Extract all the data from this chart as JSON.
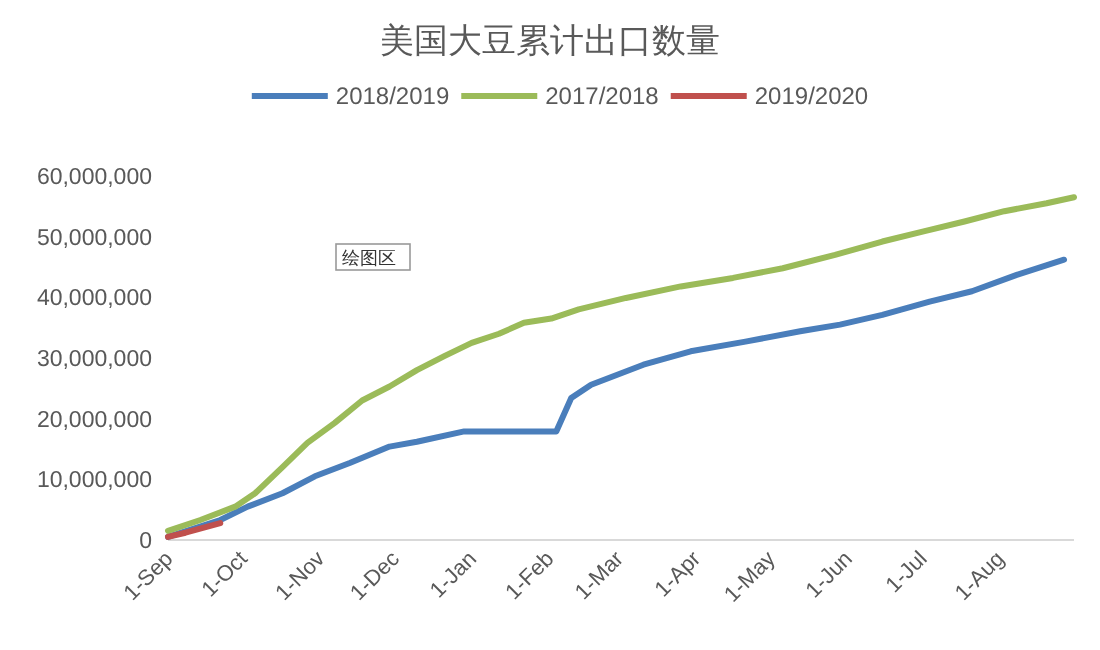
{
  "chart_data": {
    "type": "line",
    "title": "美国大豆累计出口数量",
    "legend": "top",
    "grid": false,
    "xlim": [
      "2018-09-01",
      "2019-08-31"
    ],
    "xticks": [
      {
        "value": "2018-09-01",
        "label": "1-Sep"
      },
      {
        "value": "2018-10-01",
        "label": "1-Oct"
      },
      {
        "value": "2018-11-01",
        "label": "1-Nov"
      },
      {
        "value": "2018-12-01",
        "label": "1-Dec"
      },
      {
        "value": "2019-01-01",
        "label": "1-Jan"
      },
      {
        "value": "2019-02-01",
        "label": "1-Feb"
      },
      {
        "value": "2019-03-01",
        "label": "1-Mar"
      },
      {
        "value": "2019-04-01",
        "label": "1-Apr"
      },
      {
        "value": "2019-05-01",
        "label": "1-May"
      },
      {
        "value": "2019-06-01",
        "label": "1-Jun"
      },
      {
        "value": "2019-07-01",
        "label": "1-Jul"
      },
      {
        "value": "2019-08-01",
        "label": "1-Aug"
      }
    ],
    "ylim": [
      0,
      60000000
    ],
    "yticks": [
      {
        "value": 0,
        "label": "0"
      },
      {
        "value": 10000000,
        "label": "10,000,000"
      },
      {
        "value": 20000000,
        "label": "20,000,000"
      },
      {
        "value": 30000000,
        "label": "30,000,000"
      },
      {
        "value": 40000000,
        "label": "40,000,000"
      },
      {
        "value": 50000000,
        "label": "50,000,000"
      },
      {
        "value": 60000000,
        "label": "60,000,000"
      }
    ],
    "annotations": [
      "绘图区"
    ],
    "series": [
      {
        "name": "2018/2019",
        "color": "#4a7ebb",
        "x": [
          "2018-09-01",
          "2018-09-22",
          "2018-10-03",
          "2018-10-17",
          "2018-10-30",
          "2018-11-13",
          "2018-11-29",
          "2018-12-10",
          "2018-12-29",
          "2019-02-04",
          "2019-02-10",
          "2019-02-18",
          "2019-03-11",
          "2019-03-30",
          "2019-04-21",
          "2019-05-13",
          "2019-05-29",
          "2019-06-15",
          "2019-07-04",
          "2019-07-21",
          "2019-08-08",
          "2019-08-27"
        ],
        "values": [
          500000,
          3300000,
          5500000,
          7700000,
          10500000,
          12700000,
          15400000,
          16200000,
          17900000,
          17900000,
          23400000,
          25600000,
          28900000,
          31100000,
          32700000,
          34400000,
          35500000,
          37100000,
          39300000,
          41000000,
          43700000,
          46200000
        ]
      },
      {
        "name": "2017/2018",
        "color": "#9bbb59",
        "x": [
          "2018-09-01",
          "2018-09-14",
          "2018-09-28",
          "2018-10-06",
          "2018-10-17",
          "2018-10-27",
          "2018-11-07",
          "2018-11-18",
          "2018-11-29",
          "2018-12-10",
          "2018-12-21",
          "2019-01-01",
          "2019-01-12",
          "2019-01-22",
          "2019-02-02",
          "2019-02-13",
          "2019-03-04",
          "2019-03-26",
          "2019-04-16",
          "2019-05-06",
          "2019-05-27",
          "2019-06-15",
          "2019-07-02",
          "2019-07-18",
          "2019-08-03",
          "2019-08-20",
          "2019-08-31"
        ],
        "values": [
          1500000,
          3300000,
          5500000,
          7700000,
          12000000,
          16000000,
          19300000,
          23000000,
          25300000,
          28000000,
          30300000,
          32500000,
          34000000,
          35800000,
          36500000,
          38000000,
          39900000,
          41800000,
          43200000,
          44800000,
          47000000,
          49200000,
          50900000,
          52500000,
          54200000,
          55500000,
          56500000
        ]
      },
      {
        "name": "2019/2020",
        "color": "#c0504d",
        "x": [
          "2018-09-01",
          "2018-09-08",
          "2018-09-15",
          "2018-09-22"
        ],
        "values": [
          500000,
          1200000,
          2000000,
          2800000
        ]
      }
    ]
  }
}
